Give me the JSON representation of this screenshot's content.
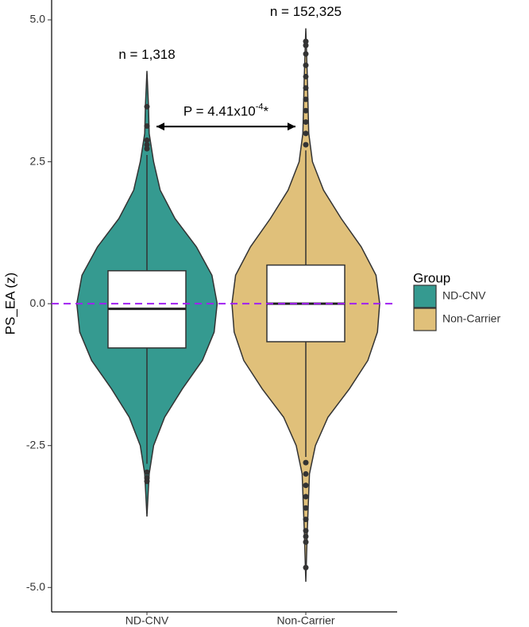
{
  "chart_data": {
    "type": "violin",
    "y_label": "PS_EA (z)",
    "categories": [
      "ND-CNV",
      "Non-Carrier"
    ],
    "legend_title": "Group",
    "legend_position": "right",
    "ylim": [
      -5.43,
      5.35
    ],
    "yticks": [
      {
        "value": 5,
        "label": "5.0"
      },
      2.5,
      {
        "value": 0,
        "label": "0.0"
      },
      -2.5,
      {
        "value": -5,
        "label": "-5.0"
      }
    ],
    "series": [
      {
        "name": "ND-CNV",
        "color": "#359a90",
        "violin": {
          "y": [
            -3.75,
            -3,
            -2.5,
            -2,
            -1.5,
            -1,
            -0.5,
            0,
            0.5,
            1,
            1.5,
            2,
            2.5,
            3,
            3.5,
            4.1
          ],
          "density": [
            0,
            0.03,
            0.09,
            0.24,
            0.48,
            0.75,
            0.91,
            0.95,
            0.88,
            0.67,
            0.38,
            0.18,
            0.09,
            0.03,
            0.02,
            0
          ]
        },
        "box": {
          "q1": -0.78,
          "median": -0.09,
          "q3": 0.58,
          "whisker_low": -2.82,
          "whisker_high": 2.62
        },
        "outliers": [
          3.47,
          3.13,
          2.88,
          2.8,
          2.73,
          -2.97,
          -3.07,
          -3.13
        ],
        "n_label": "n = 1,318"
      },
      {
        "name": "Non-Carrier",
        "color": "#e0c07a",
        "violin": {
          "y": [
            -4.9,
            -4,
            -3,
            -2.5,
            -2,
            -1.5,
            -1,
            -0.5,
            0,
            0.5,
            1,
            1.5,
            2,
            2.5,
            3,
            4,
            4.85
          ],
          "density": [
            0,
            0.02,
            0.05,
            0.13,
            0.3,
            0.59,
            0.84,
            0.97,
            1,
            0.95,
            0.75,
            0.48,
            0.24,
            0.09,
            0.04,
            0.02,
            0
          ]
        },
        "box": {
          "q1": -0.67,
          "median": 0,
          "q3": 0.68,
          "whisker_low": -2.7,
          "whisker_high": 2.7
        },
        "outliers": [
          4.62,
          4.55,
          4.4,
          4.2,
          4,
          3.8,
          3.6,
          3.4,
          3.2,
          3,
          2.8,
          -2.8,
          -3,
          -3.2,
          -3.4,
          -3.6,
          -3.8,
          -4,
          -4.1,
          -4.2,
          -4.65
        ],
        "n_label": "n = 152,325"
      }
    ],
    "reference_line": {
      "value": 0,
      "color": "#a020f0",
      "dashed": true
    },
    "comparison": {
      "from": 0,
      "to": 1,
      "y": 3.12,
      "label": "P = 4.41x10",
      "superscript": "-4",
      "suffix": "*"
    }
  }
}
